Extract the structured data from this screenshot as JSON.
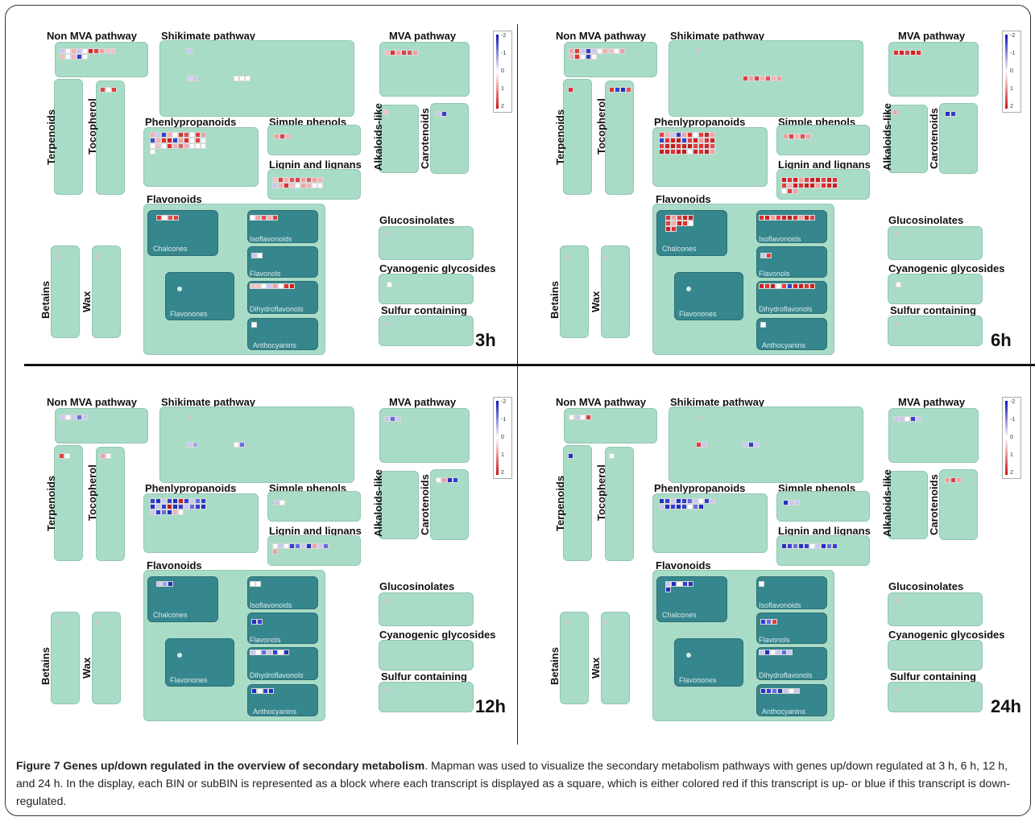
{
  "panels": [
    {
      "time": "3h",
      "cells": {
        "non_mva": [
          [
            "#c8c8f2",
            "#ffffff",
            "#f5b0b0",
            "#c8c8f2",
            "#ffffff",
            "#dd2020",
            "#e04040",
            "#f0a0a0",
            "#f4c0c0",
            "#f5c0c0"
          ],
          [
            "#f5b8b8",
            "#ffffff",
            "#f0b0c8",
            "#3040d0",
            "#ffffff"
          ]
        ],
        "shikimate": [
          [
            "#c8c8f2"
          ]
        ],
        "shikimate2": [
          [
            "#d0d0f0",
            "#c8c8f0"
          ]
        ],
        "shikimate3": [
          [
            "#ffffff",
            "#ffffff",
            "#ffffff"
          ]
        ],
        "mva": [
          [
            "#f4b8b8",
            "#e03030",
            "#f5a0a0",
            "#e04040",
            "#e05050",
            "#f0a0a0"
          ]
        ],
        "tocopherol": [
          [
            "#e04040",
            "#ffffff",
            "#e04040"
          ]
        ],
        "alkaloids": [
          [
            "#f0c0c0"
          ]
        ],
        "carotenoids": [
          [
            "#c8c8f2",
            "#3040d0"
          ]
        ],
        "phenylpropanoids": [
          [
            "#f0b0b0",
            "#c8c8f2",
            "#3040d0",
            "#f4b0b0",
            "#ffffff",
            "#e03030",
            "#e05050",
            "#ffffff",
            "#e04040",
            "#f0a0a0"
          ],
          [
            "#3050d0",
            "#f5b0b0",
            "#e03030",
            "#d02020",
            "#3040d0",
            "#f0a0a0",
            "#e03030",
            "#ffffff",
            "#e04040",
            "#ffffff"
          ],
          [
            "#ffffff",
            "#f5c0c0",
            "#ffffff",
            "#e03030",
            "#f4b0b0",
            "#e06060",
            "#f0b0b0",
            "#ffffff",
            "#ffffff",
            "#ffffff"
          ],
          [
            "#ffffff"
          ]
        ],
        "simple_phenols": [
          [
            "#f0a0a0",
            "#e04040",
            "#f5b0b0"
          ]
        ],
        "lignin": [
          [
            "#f5c0c0",
            "#e04040",
            "#f0b0b0",
            "#e05050",
            "#e04040",
            "#f0a0a0",
            "#e06060",
            "#f0a0a0",
            "#f5b0b0"
          ],
          [
            "#c8c8f2",
            "#f0b0b0",
            "#e03030",
            "#f4c0c0",
            "#ffffff",
            "#f0a0a0",
            "#f5b0b0",
            "#ffffff",
            "#ffffff"
          ]
        ],
        "chalcones": [
          [
            "#e03030",
            "#ffffff",
            "#e05050",
            "#e04040"
          ]
        ],
        "isoflavonoids": [
          [
            "#ffffff",
            "#f0a0a0",
            "#e05050",
            "#f5b0b0",
            "#e04040"
          ]
        ],
        "flavonols": [
          [
            "#c8c8f2",
            "#ffffff"
          ]
        ],
        "dihydroflavonols": [
          [
            "#f0c0c0",
            "#f5c0c0",
            "#ffffff",
            "#c8c8f2",
            "#f0a0a0",
            "#ffffff",
            "#e03030",
            "#d02020"
          ]
        ],
        "anthocyanins": [
          [
            "#ffffff"
          ]
        ],
        "cyanogenic": [
          [
            "#ffffff"
          ]
        ],
        "betains_dot": true
      }
    },
    {
      "time": "6h",
      "cells": {
        "non_mva": [
          [
            "#f0a0a0",
            "#e04040",
            "#c8c8f2",
            "#3040d0",
            "#c8c8f2",
            "#ffffff",
            "#f0b0b0",
            "#f5c0c0",
            "#ffffff",
            "#f0a0a0"
          ],
          [
            "#f5b0b0",
            "#e03030",
            "#ffffff",
            "#3040d0",
            "#ffffff"
          ]
        ],
        "shikimate": [],
        "shikimate2": [],
        "shikimate3": [
          [
            "#e04040",
            "#f0a0a0",
            "#e04040",
            "#f0b0b0",
            "#e05050",
            "#f5b0b0",
            "#f0a0a0"
          ]
        ],
        "mva": [
          [
            "#e03030",
            "#d02020",
            "#e04040",
            "#d02020",
            "#e03030"
          ]
        ],
        "tocopherol": [
          [
            "#e03030",
            "#3040d0",
            "#2030c0",
            "#e05050"
          ]
        ],
        "terpenoids": [
          [
            "#e03030"
          ]
        ],
        "alkaloids": [
          [
            "#f0a0a0"
          ]
        ],
        "carotenoids": [
          [
            "#2030c0",
            "#3040d0"
          ]
        ],
        "phenylpropanoids": [
          [
            "#e04040",
            "#f5b0b0",
            "#c8c8f2",
            "#3040d0",
            "#f0a0a0",
            "#e03030",
            "#ffffff",
            "#e04040",
            "#d02020",
            "#f0a0a0"
          ],
          [
            "#3040d0",
            "#e03030",
            "#d02020",
            "#c02020",
            "#3040d0",
            "#e04040",
            "#d02020",
            "#f0a0a0",
            "#e03030",
            "#d02020"
          ],
          [
            "#e04040",
            "#d02020",
            "#c02020",
            "#e03030",
            "#d02020",
            "#c02020",
            "#e04040",
            "#e03030",
            "#d02020",
            "#e05050"
          ],
          [
            "#c02020",
            "#d02020",
            "#e03030",
            "#d02020",
            "#c02020",
            "#ffffff",
            "#d02020",
            "#e03030",
            "#c02020",
            "#f0a0a0"
          ]
        ],
        "simple_phenols": [
          [
            "#f0a0a0",
            "#e04040",
            "#f5b0b0",
            "#e05050",
            "#f0a0a0"
          ]
        ],
        "lignin": [
          [
            "#d02020",
            "#e03030",
            "#d02020",
            "#f0a0a0",
            "#e04040",
            "#d02020",
            "#c02020",
            "#e04040",
            "#d02020",
            "#e03030"
          ],
          [
            "#e04040",
            "#f5b0b0",
            "#d02020",
            "#e03030",
            "#c02020",
            "#d02020",
            "#f0a0a0",
            "#e03030",
            "#d02020",
            "#c02020"
          ],
          [
            "#ffffff",
            "#e04040",
            "#f0a0a0"
          ]
        ],
        "chalcones": [
          [
            "#e03030",
            "#f0a0a0",
            "#e04040",
            "#d02020",
            "#c02020"
          ],
          [
            "#e04040",
            "#f5b0b0",
            "#d02020",
            "#e03030",
            "#ffffff"
          ],
          [
            "#d02020",
            "#e03030"
          ]
        ],
        "isoflavonoids": [
          [
            "#e03030",
            "#d02020",
            "#f0a0a0",
            "#e04040",
            "#d02020",
            "#c02020",
            "#e03030",
            "#f0a0a0",
            "#d02020",
            "#e04040"
          ]
        ],
        "flavonols": [
          [
            "#c8c8f2",
            "#e04040"
          ]
        ],
        "dihydroflavonols": [
          [
            "#d02020",
            "#e03030",
            "#c02020",
            "#ffffff",
            "#e04040",
            "#3040d0",
            "#d02020",
            "#c02020",
            "#e03030",
            "#d02020"
          ]
        ],
        "anthocyanins": [
          [
            "#ffffff"
          ]
        ],
        "cyanogenic": [
          [
            "#ffffff"
          ]
        ],
        "betains_dot": true
      }
    },
    {
      "time": "12h",
      "cells": {
        "non_mva": [
          [
            "#c8c8f2",
            "#ffffff",
            "#c8c8f2",
            "#6070e0",
            "#c8c8f2"
          ]
        ],
        "shikimate": [],
        "shikimate2": [
          [
            "#c8c8f2",
            "#a0a8e8"
          ]
        ],
        "shikimate3": [
          [
            "#ffffff",
            "#6070e0"
          ]
        ],
        "mva": [
          [
            "#c8c8f2",
            "#6070e0",
            "#c8c8f2"
          ]
        ],
        "tocopherol": [
          [
            "#f0a0a0",
            "#ffffff"
          ]
        ],
        "terpenoids": [
          [
            "#e04040",
            "#ffffff"
          ]
        ],
        "alkaloids": [],
        "carotenoids": [
          [
            "#ffffff",
            "#f0a0a0",
            "#2030c0",
            "#3040d0"
          ]
        ],
        "phenylpropanoids": [
          [
            "#3040d0",
            "#2030c0",
            "#c8c8f2",
            "#3040d0",
            "#2030c0",
            "#d02020",
            "#3040d0",
            "#c8c8f2",
            "#6070e0",
            "#3040d0"
          ],
          [
            "#2030c0",
            "#c8c8f2",
            "#3040d0",
            "#c02020",
            "#2030c0",
            "#3040d0",
            "#c8c8f2",
            "#6070e0",
            "#3040d0",
            "#2030c0"
          ],
          [
            "#c8c8f2",
            "#3040d0",
            "#6070e0",
            "#2030c0",
            "#f0b0c8",
            "#ffffff"
          ]
        ],
        "simple_phenols": [
          [
            "#c8c8f2",
            "#ffffff"
          ]
        ],
        "lignin": [
          [
            "#ffffff",
            "#c8c8f2",
            "#ffffff",
            "#3040d0",
            "#6070e0",
            "#c8c8f2",
            "#2030c0",
            "#f0a0a0",
            "#c8c8f2",
            "#6070e0"
          ],
          [
            "#f0a0a0"
          ]
        ],
        "chalcones": [
          [
            "#c8c8f2",
            "#a0a8e8",
            "#2030c0"
          ]
        ],
        "isoflavonoids": [
          [
            "#ffffff",
            "#ffffff"
          ]
        ],
        "flavonols": [
          [
            "#2030c0",
            "#3040d0"
          ]
        ],
        "dihydroflavonols": [
          [
            "#c8c8f2",
            "#ffffff",
            "#6070e0",
            "#c8c8f2",
            "#3040d0",
            "#ffffff",
            "#2030c0"
          ]
        ],
        "anthocyanins": [
          [
            "#2030c0",
            "#ffffff",
            "#3040d0",
            "#2030c0"
          ]
        ],
        "cyanogenic": [],
        "betains_dot": true
      }
    },
    {
      "time": "24h",
      "cells": {
        "non_mva": [
          [
            "#ffffff",
            "#c8c8f2",
            "#ffffff",
            "#e04040"
          ]
        ],
        "shikimate": [],
        "shikimate2": [
          [
            "#e04040",
            "#c8c8f2"
          ]
        ],
        "shikimate3": [
          [
            "#c8c8f2",
            "#3040d0",
            "#c8c8f2"
          ]
        ],
        "mva": [
          [
            "#c8c8f2",
            "#c8c8f2",
            "#ffffff",
            "#3040d0",
            "#c8c8f2"
          ]
        ],
        "tocopherol": [
          [
            "#ffffff"
          ]
        ],
        "terpenoids": [
          [
            "#2030c0"
          ]
        ],
        "alkaloids": [],
        "carotenoids": [
          [
            "#f0a0a0",
            "#e04040",
            "#f0a0a0"
          ]
        ],
        "phenylpropanoids": [
          [
            "#2030c0",
            "#3040d0",
            "#c8c8f2",
            "#2030c0",
            "#3040d0",
            "#6070e0",
            "#c8c8f2",
            "#ffffff",
            "#3040d0",
            "#c8c8f2"
          ],
          [
            "#c8c8f2",
            "#2030c0",
            "#3040d0",
            "#2030c0",
            "#3040d0",
            "#ffffff",
            "#6070e0",
            "#2030c0"
          ]
        ],
        "simple_phenols": [
          [
            "#2030c0",
            "#c8c8f2",
            "#c8c8f2"
          ]
        ],
        "lignin": [
          [
            "#2030c0",
            "#3040d0",
            "#6070e0",
            "#2030c0",
            "#3040d0",
            "#ffffff",
            "#c8c8f2",
            "#2030c0",
            "#6070e0",
            "#3040d0"
          ]
        ],
        "chalcones": [
          [
            "#c8c8f2",
            "#2030c0",
            "#ffffff",
            "#3040d0",
            "#2030c0"
          ],
          [
            "#2030c0"
          ]
        ],
        "isoflavonoids": [
          [
            "#ffffff"
          ]
        ],
        "flavonols": [
          [
            "#3040d0",
            "#6070e0",
            "#e04040"
          ]
        ],
        "dihydroflavonols": [
          [
            "#c8c8f2",
            "#2030c0",
            "#ffffff",
            "#c8c8f2",
            "#6070e0",
            "#c8c8f2"
          ]
        ],
        "anthocyanins": [
          [
            "#2030c0",
            "#3040d0",
            "#6070e0",
            "#2030c0",
            "#c8c8f2",
            "#ffffff",
            "#c8c8f2"
          ]
        ],
        "cyanogenic": [],
        "betains_dot": true
      }
    }
  ],
  "labels": {
    "non_mva": "Non MVA pathway",
    "shikimate": "Shikimate pathway",
    "mva": "MVA pathway",
    "terpenoids": "Terpenoids",
    "tocopherol": "Tocopherol",
    "phenylpropanoids": "Phenlypropanoids",
    "simple_phenols": "Simple phenols",
    "lignin": "Lignin and lignans",
    "alkaloids": "Alkaloids-like",
    "carotenoids": "Carotenoids",
    "flavonoids": "Flavonoids",
    "chalcones": "Chalcones",
    "isoflavonoids": "Isoflavonoids",
    "flavonols": "Flavonols",
    "flavonones": "Flavonones",
    "dihydroflavonols": "Dihydroflavonols",
    "anthocyanins": "Anthocyanins",
    "glucosinolates": "Glucosinolates",
    "cyanogenic": "Cyanogenic glycosides",
    "sulfur": "Sulfur containing",
    "betains": "Betains",
    "wax": "Wax"
  },
  "legend": {
    "ticks": [
      "-2",
      "-1",
      "0",
      "1",
      "2"
    ],
    "colors": {
      "low": "#1010b8",
      "mid": "#ffffff",
      "high": "#cc1010"
    }
  },
  "caption": {
    "title": "Figure 7 Genes up/down regulated in the overview of secondary metabolism",
    "body": ". Mapman was used to visualize the secondary metabolism pathways with genes up/down regulated at 3 h, 6 h, 12 h, and 24 h. In the display, each BIN or subBIN is represented as a block where each transcript is displayed as a square, which is either colored red if this transcript is up- or blue if this transcript is down-regulated."
  }
}
